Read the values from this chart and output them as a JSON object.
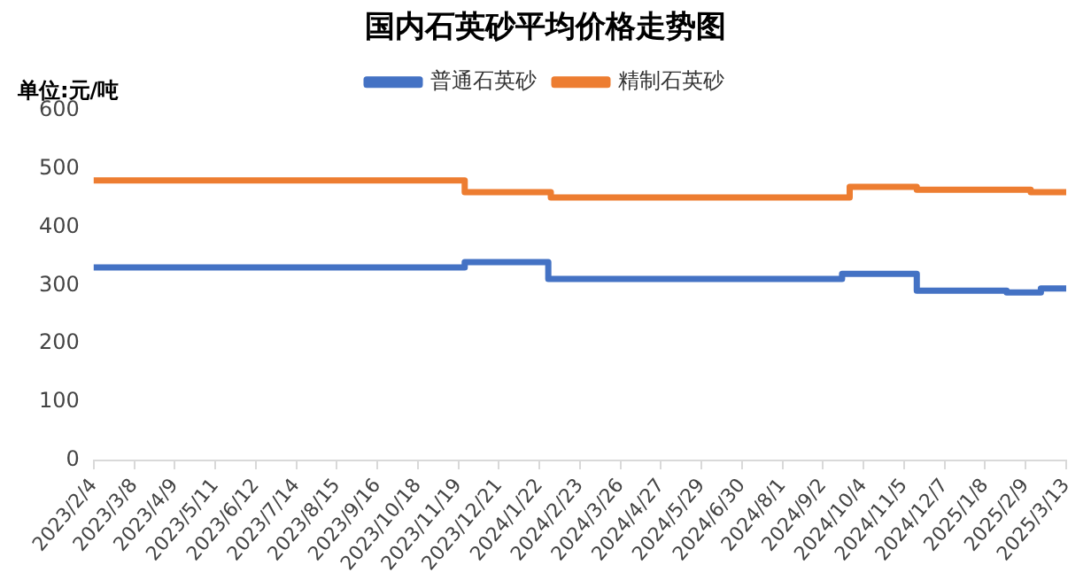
{
  "chart_data": {
    "type": "step",
    "title": "国内石英砂平均价格走势图",
    "ylabel": "单位:元/吨",
    "series": [
      {
        "name": "普通石英砂",
        "color": "#4472c4",
        "x": [
          "2023-02-04",
          "2023-11-24",
          "2024-01-29",
          "2024-09-17",
          "2024-11-15",
          "2025-01-25",
          "2025-02-21",
          "2025-03-13"
        ],
        "values": [
          331,
          340,
          311,
          320,
          291,
          288,
          295,
          295
        ]
      },
      {
        "name": "精制石英砂",
        "color": "#ed7d31",
        "x": [
          "2023-02-04",
          "2023-11-24",
          "2024-01-31",
          "2024-09-23",
          "2024-11-15",
          "2025-02-13",
          "2025-03-13"
        ],
        "values": [
          480,
          460,
          451,
          469,
          464,
          460,
          460
        ]
      }
    ],
    "xlim": [
      "2023-02-04",
      "2025-03-13"
    ],
    "xticks": [
      {
        "value": "2023-02-04",
        "label": "2023/2/4"
      },
      {
        "value": "2023-03-08",
        "label": "2023/3/8"
      },
      {
        "value": "2023-04-09",
        "label": "2023/4/9"
      },
      {
        "value": "2023-05-11",
        "label": "2023/5/11"
      },
      {
        "value": "2023-06-12",
        "label": "2023/6/12"
      },
      {
        "value": "2023-07-14",
        "label": "2023/7/14"
      },
      {
        "value": "2023-08-15",
        "label": "2023/8/15"
      },
      {
        "value": "2023-09-16",
        "label": "2023/9/16"
      },
      {
        "value": "2023-10-18",
        "label": "2023/10/18"
      },
      {
        "value": "2023-11-19",
        "label": "2023/11/19"
      },
      {
        "value": "2023-12-21",
        "label": "2023/12/21"
      },
      {
        "value": "2024-01-22",
        "label": "2024/1/22"
      },
      {
        "value": "2024-02-23",
        "label": "2024/2/23"
      },
      {
        "value": "2024-03-26",
        "label": "2024/3/26"
      },
      {
        "value": "2024-04-27",
        "label": "2024/4/27"
      },
      {
        "value": "2024-05-29",
        "label": "2024/5/29"
      },
      {
        "value": "2024-06-30",
        "label": "2024/6/30"
      },
      {
        "value": "2024-08-01",
        "label": "2024/8/1"
      },
      {
        "value": "2024-09-02",
        "label": "2024/9/2"
      },
      {
        "value": "2024-10-04",
        "label": "2024/10/4"
      },
      {
        "value": "2024-11-05",
        "label": "2024/11/5"
      },
      {
        "value": "2024-12-07",
        "label": "2024/12/7"
      },
      {
        "value": "2025-01-08",
        "label": "2025/1/8"
      },
      {
        "value": "2025-02-09",
        "label": "2025/2/9"
      },
      {
        "value": "2025-03-13",
        "label": "2025/3/13"
      }
    ],
    "ylim": [
      0,
      600
    ],
    "yticks": [
      0,
      100,
      200,
      300,
      400,
      500,
      600
    ],
    "grid": false,
    "legend": "top",
    "marker": "none",
    "line_style": "solid"
  }
}
